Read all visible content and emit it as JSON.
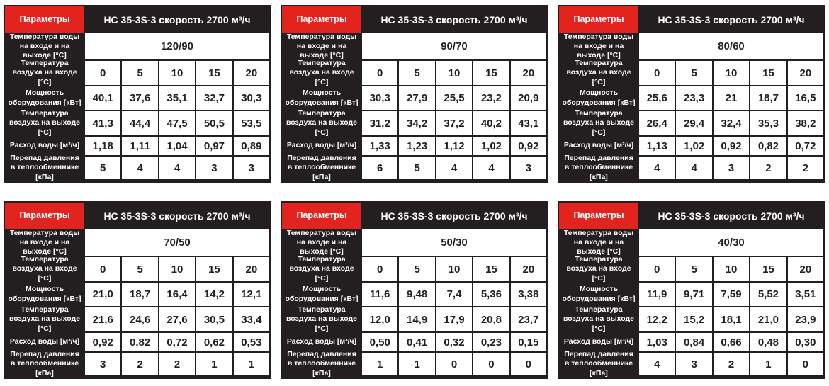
{
  "colors": {
    "accent_red": "#e3241e",
    "table_dark": "#231f20",
    "cell_bg": "#ffffff"
  },
  "common": {
    "params_label": "Параметры",
    "title": "НС 35-3S-3 скорость 2700 м³/ч",
    "row_labels": {
      "water_temp": "Температура воды на входе и на выходе [°С]",
      "air_in": "Температура воздуха на входе [°С]",
      "power": "Мощность оборудования [кВт]",
      "air_out": "Температура воздуха на выходе [°С]",
      "water_flow": "Расход воды [м³/ч]",
      "pressure_drop": "Перепад давления в теплообменнике [кПа]"
    },
    "air_in_values": [
      "0",
      "5",
      "10",
      "15",
      "20"
    ]
  },
  "tables": [
    {
      "regime": "120/90",
      "power": [
        "40,1",
        "37,6",
        "35,1",
        "32,7",
        "30,3"
      ],
      "air_out": [
        "41,3",
        "44,4",
        "47,5",
        "50,5",
        "53,5"
      ],
      "water_flow": [
        "1,18",
        "1,11",
        "1,04",
        "0,97",
        "0,89"
      ],
      "pressure_drop": [
        "5",
        "4",
        "4",
        "3",
        "3"
      ]
    },
    {
      "regime": "90/70",
      "power": [
        "30,3",
        "27,9",
        "25,5",
        "23,2",
        "20,9"
      ],
      "air_out": [
        "31,2",
        "34,2",
        "37,2",
        "40,2",
        "43,1"
      ],
      "water_flow": [
        "1,33",
        "1,23",
        "1,12",
        "1,02",
        "0,92"
      ],
      "pressure_drop": [
        "6",
        "5",
        "4",
        "4",
        "3"
      ]
    },
    {
      "regime": "80/60",
      "power": [
        "25,6",
        "23,3",
        "21",
        "18,7",
        "16,5"
      ],
      "air_out": [
        "26,4",
        "29,4",
        "32,4",
        "35,3",
        "38,2"
      ],
      "water_flow": [
        "1,13",
        "1,02",
        "0,92",
        "0,82",
        "0,72"
      ],
      "pressure_drop": [
        "4",
        "4",
        "3",
        "2",
        "2"
      ]
    },
    {
      "regime": "70/50",
      "power": [
        "21,0",
        "18,7",
        "16,4",
        "14,2",
        "12,1"
      ],
      "air_out": [
        "21,6",
        "24,6",
        "27,6",
        "30,5",
        "33,4"
      ],
      "water_flow": [
        "0,92",
        "0,82",
        "0,72",
        "0,62",
        "0,53"
      ],
      "pressure_drop": [
        "3",
        "2",
        "2",
        "1",
        "1"
      ]
    },
    {
      "regime": "50/30",
      "power": [
        "11,6",
        "9,48",
        "7,4",
        "5,36",
        "3,38"
      ],
      "air_out": [
        "12,0",
        "14,9",
        "17,9",
        "20,8",
        "23,7"
      ],
      "water_flow": [
        "0,50",
        "0,41",
        "0,32",
        "0,23",
        "0,15"
      ],
      "pressure_drop": [
        "1",
        "1",
        "0",
        "0",
        "0"
      ]
    },
    {
      "regime": "40/30",
      "power": [
        "11,9",
        "9,71",
        "7,59",
        "5,52",
        "3,51"
      ],
      "air_out": [
        "12,2",
        "15,2",
        "18,1",
        "21,0",
        "23,9"
      ],
      "water_flow": [
        "1,03",
        "0,84",
        "0,66",
        "0,48",
        "0,30"
      ],
      "pressure_drop": [
        "4",
        "3",
        "2",
        "1",
        "0"
      ]
    }
  ]
}
